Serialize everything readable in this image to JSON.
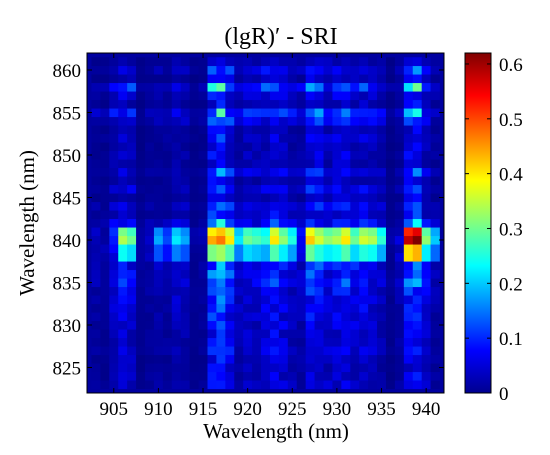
{
  "chart_data": {
    "type": "heatmap",
    "title": "(lgR)′ - SRI",
    "xlabel": "Wavelength (nm)",
    "ylabel": "Wavelength (nm)",
    "xlim": [
      902,
      942
    ],
    "ylim": [
      822,
      862
    ],
    "x_ticks": [
      905,
      910,
      915,
      920,
      925,
      930,
      935,
      940
    ],
    "x_tick_labels": [
      "905",
      "910",
      "915",
      "920",
      "925",
      "930",
      "935",
      "940"
    ],
    "y_ticks": [
      825,
      830,
      835,
      840,
      845,
      850,
      855,
      860
    ],
    "y_tick_labels": [
      "825",
      "830",
      "835",
      "840",
      "845",
      "850",
      "855",
      "860"
    ],
    "colorbar": {
      "range": [
        0,
        0.62
      ],
      "ticks": [
        0,
        0.1,
        0.2,
        0.3,
        0.4,
        0.5,
        0.6
      ],
      "tick_labels": [
        "0",
        "0.1",
        "0.2",
        "0.3",
        "0.4",
        "0.5",
        "0.6"
      ],
      "colormap": "jet"
    },
    "grid": false,
    "grid_step_nm": 1,
    "columns": [
      {
        "x": 903,
        "level": 0.04
      },
      {
        "x": 904,
        "level": 0.03
      },
      {
        "x": 905,
        "level": 0.08
      },
      {
        "x": 906,
        "level": 0.12,
        "peak": 0.34
      },
      {
        "x": 907,
        "level": 0.1,
        "peak": 0.3
      },
      {
        "x": 908,
        "level": 0.02
      },
      {
        "x": 909,
        "level": 0.04
      },
      {
        "x": 910,
        "level": 0.05,
        "peak": 0.18
      },
      {
        "x": 911,
        "level": 0.04,
        "peak": 0.12
      },
      {
        "x": 912,
        "level": 0.08,
        "peak": 0.22
      },
      {
        "x": 913,
        "level": 0.06,
        "peak": 0.18
      },
      {
        "x": 914,
        "level": 0.02
      },
      {
        "x": 915,
        "level": 0.03
      },
      {
        "x": 916,
        "level": 0.2,
        "peak": 0.44
      },
      {
        "x": 917,
        "level": 0.24,
        "peak": 0.47
      },
      {
        "x": 918,
        "level": 0.16,
        "peak": 0.4
      },
      {
        "x": 919,
        "level": 0.07,
        "peak": 0.22
      },
      {
        "x": 920,
        "level": 0.1,
        "peak": 0.3
      },
      {
        "x": 921,
        "level": 0.09,
        "peak": 0.28
      },
      {
        "x": 922,
        "level": 0.12,
        "peak": 0.26
      },
      {
        "x": 923,
        "level": 0.15,
        "peak": 0.4
      },
      {
        "x": 924,
        "level": 0.12,
        "peak": 0.32
      },
      {
        "x": 925,
        "level": 0.08,
        "peak": 0.25
      },
      {
        "x": 926,
        "level": 0.06
      },
      {
        "x": 927,
        "level": 0.16,
        "peak": 0.42
      },
      {
        "x": 928,
        "level": 0.15,
        "peak": 0.36
      },
      {
        "x": 929,
        "level": 0.1,
        "peak": 0.32
      },
      {
        "x": 930,
        "level": 0.13,
        "peak": 0.34
      },
      {
        "x": 931,
        "level": 0.15,
        "peak": 0.4
      },
      {
        "x": 932,
        "level": 0.11,
        "peak": 0.3
      },
      {
        "x": 933,
        "level": 0.12,
        "peak": 0.36
      },
      {
        "x": 934,
        "level": 0.1,
        "peak": 0.34
      },
      {
        "x": 935,
        "level": 0.07,
        "peak": 0.26
      },
      {
        "x": 936,
        "level": 0.02
      },
      {
        "x": 937,
        "level": 0.05
      },
      {
        "x": 938,
        "level": 0.18,
        "peak": 0.58
      },
      {
        "x": 939,
        "level": 0.22,
        "peak": 0.62
      },
      {
        "x": 940,
        "level": 0.1,
        "peak": 0.32
      },
      {
        "x": 941,
        "level": 0.05,
        "peak": 0.2
      }
    ]
  }
}
